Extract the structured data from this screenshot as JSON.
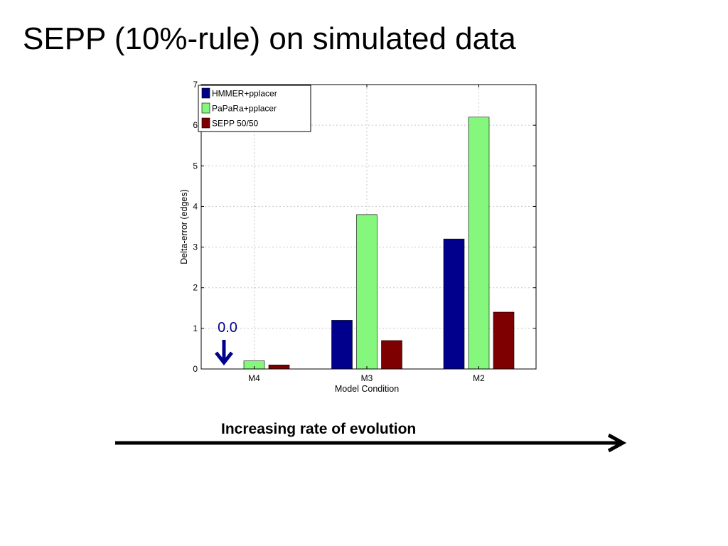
{
  "slide": {
    "title": "SEPP (10%-rule) on simulated data",
    "caption": "Increasing rate of evolution"
  },
  "colors": {
    "hmmer": "#00008c",
    "papara": "#85f77d",
    "sepp": "#7f0000",
    "callout": "#00008c",
    "grid": "#c8c8c8"
  },
  "icons": {
    "callout_arrow": "arrow-down-icon",
    "caption_arrow": "arrow-right-icon"
  },
  "chart_data": {
    "type": "bar",
    "categories": [
      "M4",
      "M3",
      "M2"
    ],
    "series": [
      {
        "name": "HMMER+pplacer",
        "values": [
          0.0,
          1.2,
          3.2
        ]
      },
      {
        "name": "PaPaRa+pplacer",
        "values": [
          0.2,
          3.8,
          6.2
        ]
      },
      {
        "name": "SEPP 50/50",
        "values": [
          0.1,
          0.7,
          1.4
        ]
      }
    ],
    "xlabel": "Model Condition",
    "ylabel": "Delta-error (edges)",
    "ylim": [
      0,
      7
    ],
    "yticks": [
      0,
      1,
      2,
      3,
      4,
      5,
      6,
      7
    ],
    "grid": true,
    "legend_position": "top-left",
    "annotation": {
      "text": "0.0",
      "category": "M4",
      "series": "HMMER+pplacer"
    }
  }
}
